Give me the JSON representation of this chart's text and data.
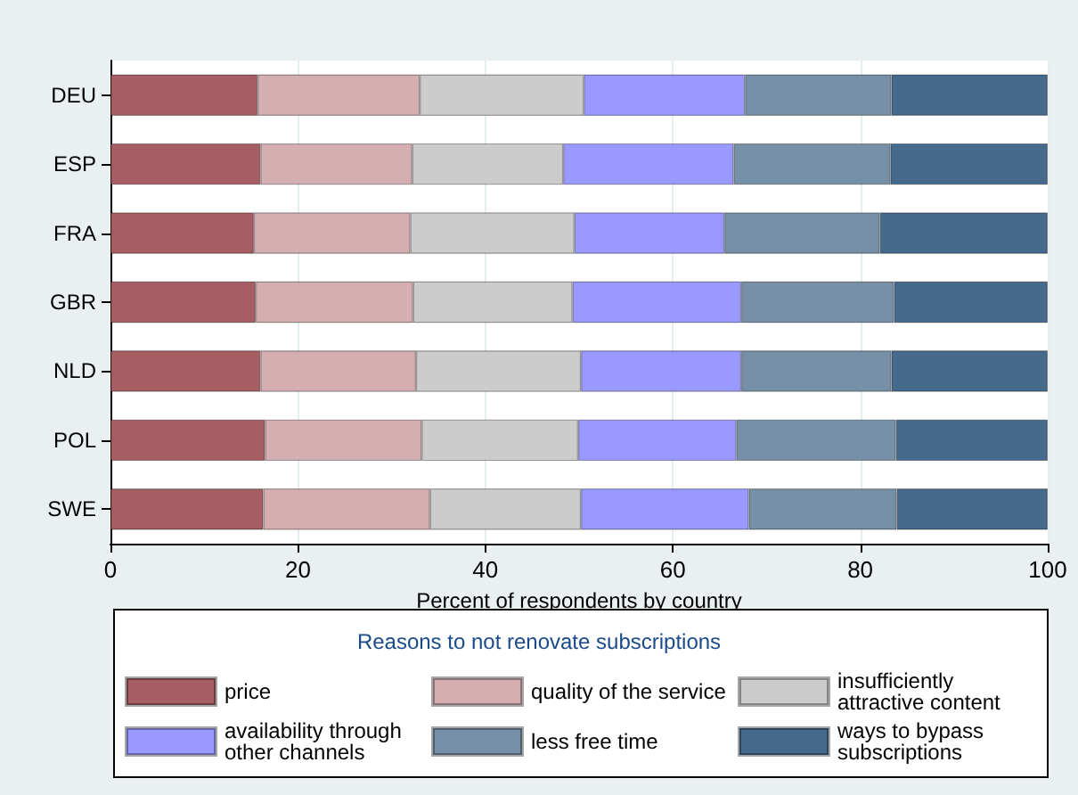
{
  "chart_data": {
    "type": "bar",
    "orientation": "horizontal",
    "stacked": true,
    "xlabel": "Percent of respondents by country",
    "legend_title": "Reasons to not renovate subscriptions",
    "legend": "bottom",
    "grid": "x",
    "categories": [
      "DEU",
      "ESP",
      "FRA",
      "GBR",
      "NLD",
      "POL",
      "SWE"
    ],
    "xlim": [
      0,
      100
    ],
    "xticks": [
      0,
      20,
      40,
      60,
      80,
      100
    ],
    "series": [
      {
        "name": "price",
        "color": "#a65e62",
        "values": [
          15.7,
          16.0,
          15.3,
          15.5,
          16.0,
          16.5,
          16.3
        ]
      },
      {
        "name": "quality of the service",
        "color": "#d4aeb1",
        "values": [
          17.3,
          16.2,
          16.7,
          16.8,
          16.6,
          16.7,
          17.8
        ]
      },
      {
        "name": "insufficiently attractive content",
        "color": "#cccccc",
        "values": [
          17.5,
          16.1,
          17.5,
          17.0,
          17.6,
          16.7,
          16.1
        ]
      },
      {
        "name": "availability through other channels",
        "color": "#9999ff",
        "values": [
          17.2,
          18.2,
          16.0,
          18.0,
          17.1,
          16.9,
          17.9
        ]
      },
      {
        "name": "less free time",
        "color": "#7690a8",
        "values": [
          15.6,
          16.7,
          16.6,
          16.3,
          16.0,
          17.0,
          15.8
        ]
      },
      {
        "name": "ways to bypass subscriptions",
        "color": "#466a8c",
        "values": [
          16.7,
          16.8,
          17.9,
          16.4,
          16.7,
          16.2,
          16.1
        ]
      }
    ]
  }
}
